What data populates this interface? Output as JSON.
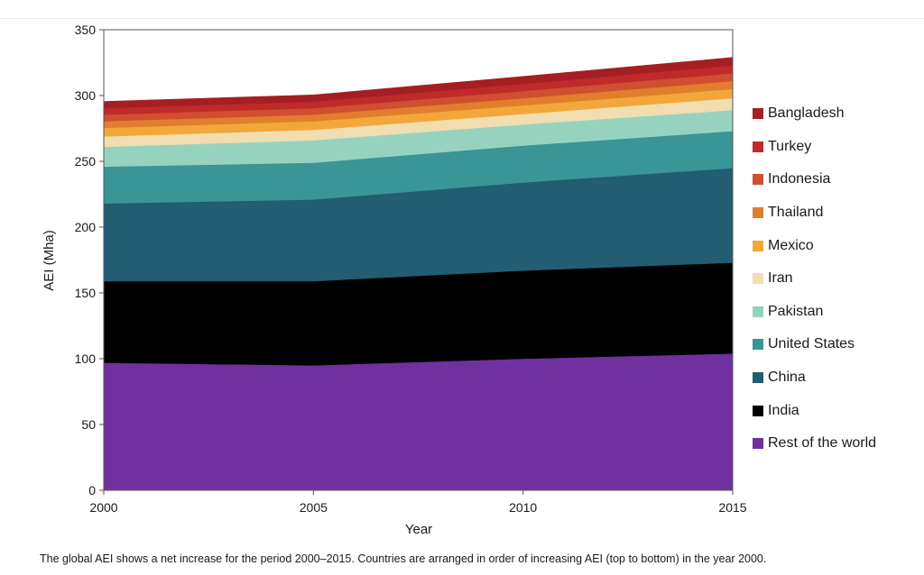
{
  "chart_data": {
    "type": "area",
    "stacked": true,
    "title": "",
    "xlabel": "Year",
    "ylabel": "AEI (Mha)",
    "x": [
      2000,
      2005,
      2010,
      2015
    ],
    "xlim": [
      2000,
      2015
    ],
    "ylim": [
      0,
      350
    ],
    "xticks": [
      "2000",
      "2005",
      "2010",
      "2015"
    ],
    "yticks": [
      "0",
      "50",
      "100",
      "150",
      "200",
      "250",
      "300",
      "350"
    ],
    "grid": false,
    "legend_position": "right",
    "series": [
      {
        "name": "Rest of the world",
        "color": "#7030a0",
        "values": [
          97,
          95,
          100,
          104
        ]
      },
      {
        "name": "India",
        "color": "#000000",
        "values": [
          62,
          64,
          67,
          69
        ]
      },
      {
        "name": "China",
        "color": "#235d72",
        "values": [
          59,
          62,
          67,
          72
        ]
      },
      {
        "name": "United States",
        "color": "#3a9596",
        "values": [
          28,
          28,
          28,
          28
        ]
      },
      {
        "name": "Pakistan",
        "color": "#96d3bf",
        "values": [
          15,
          17,
          16,
          16
        ]
      },
      {
        "name": "Iran",
        "color": "#f0ddb0",
        "values": [
          8,
          8,
          8,
          9
        ]
      },
      {
        "name": "Mexico",
        "color": "#f2a73b",
        "values": [
          6.5,
          6.5,
          6.5,
          7
        ]
      },
      {
        "name": "Thailand",
        "color": "#e07e2e",
        "values": [
          5,
          5,
          5.5,
          6
        ]
      },
      {
        "name": "Indonesia",
        "color": "#cf4f30",
        "values": [
          5,
          5,
          5.5,
          6
        ]
      },
      {
        "name": "Turkey",
        "color": "#bf2a2a",
        "values": [
          5,
          5,
          5.5,
          6
        ]
      },
      {
        "name": "Bangladesh",
        "color": "#a41e22",
        "values": [
          5,
          5,
          5.5,
          6
        ]
      }
    ]
  },
  "caption": "The global AEI shows a net increase for the period 2000–2015. Countries are arranged in order of increasing AEI (top to bottom) in the year 2000."
}
